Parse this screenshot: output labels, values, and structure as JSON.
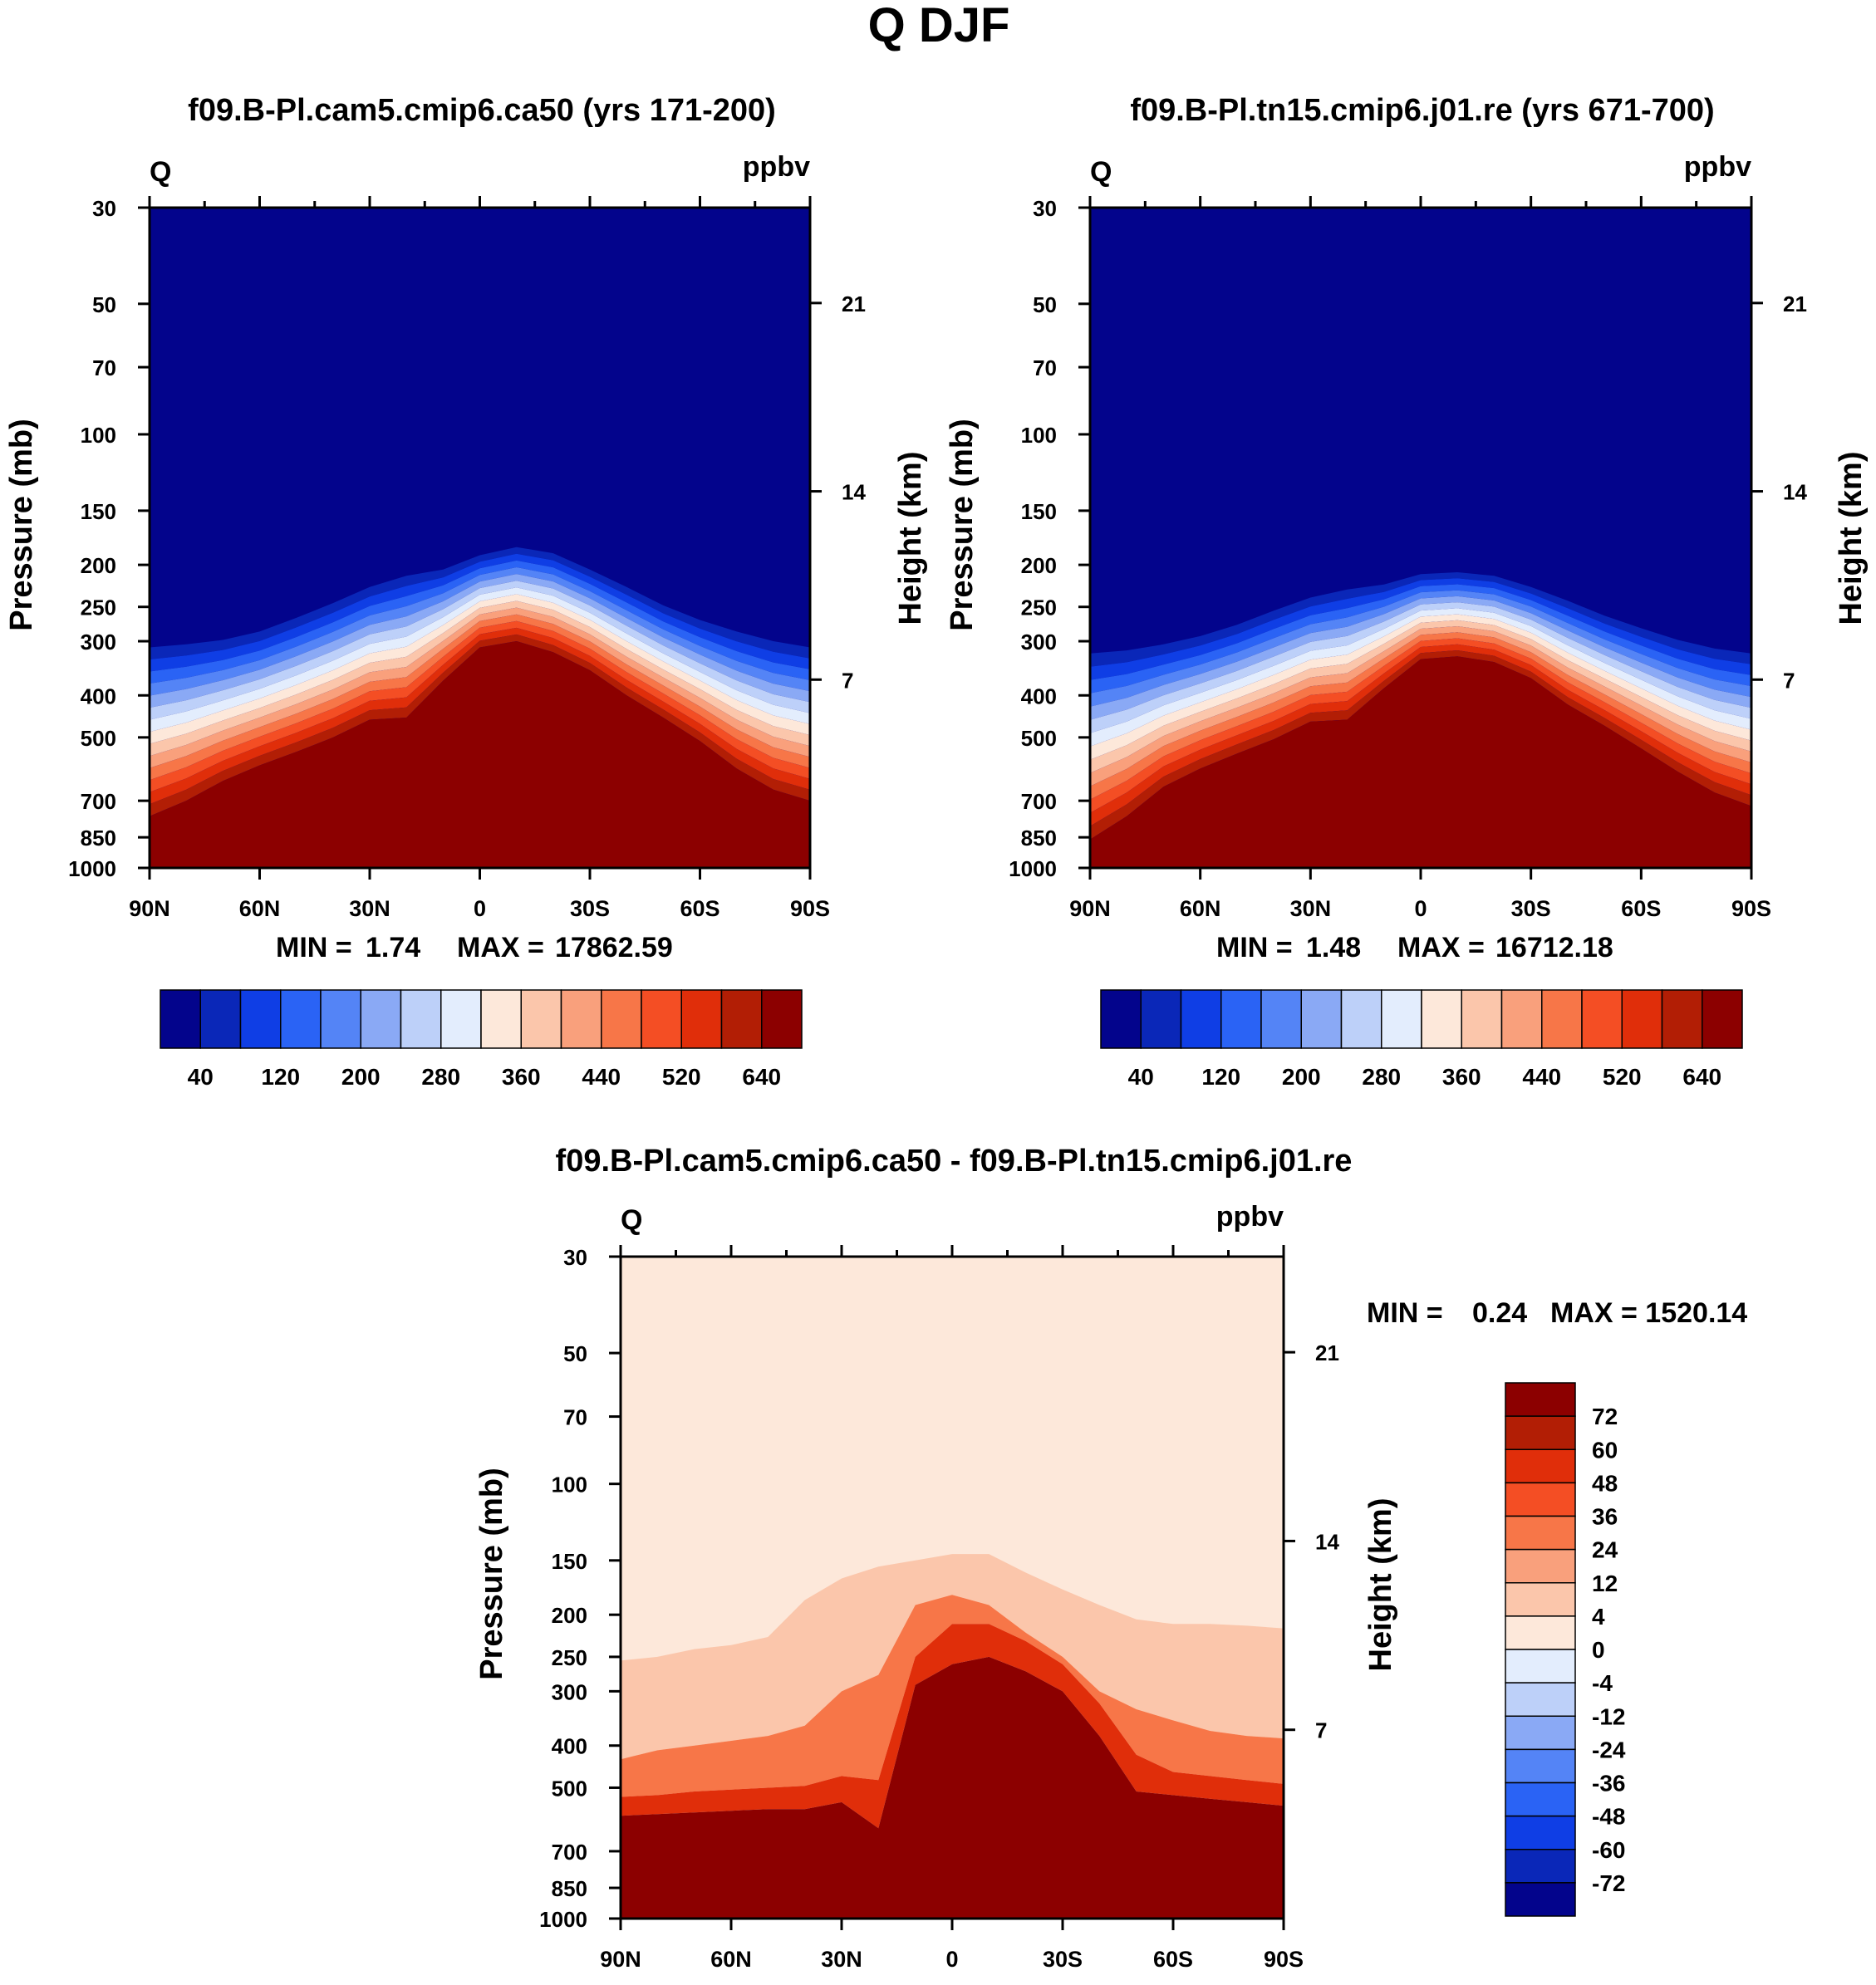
{
  "figure": {
    "title": "Q DJF"
  },
  "palettes": {
    "absolute": [
      "#03048c",
      "#0a27b8",
      "#0f3ee5",
      "#2a63f5",
      "#5484f6",
      "#8aa9f5",
      "#bdd0f9",
      "#e3edfd",
      "#fde8da",
      "#fbc6ab",
      "#f9a07c",
      "#f77648",
      "#f44e24",
      "#e02e0a",
      "#b21e05",
      "#8c0000"
    ],
    "difference": [
      "#03048c",
      "#0a27b8",
      "#0f3ee5",
      "#2a63f5",
      "#5484f6",
      "#8aa9f5",
      "#bdd0f9",
      "#e3edfd",
      "#fde8da",
      "#fbc6ab",
      "#f9a07c",
      "#f77648",
      "#f44e24",
      "#e02e0a",
      "#b21e05",
      "#8c0000"
    ]
  },
  "chart_data": [
    {
      "type": "contour",
      "title": "f09.B-Pl.cam5.cmip6.ca50 (yrs 171-200)",
      "variable": "Q",
      "units": "ppbv",
      "ylabel": "Pressure (mb)",
      "y2label": "Height (km)",
      "x_ticks": [
        "90N",
        "60N",
        "30N",
        "0",
        "30S",
        "60S",
        "90S"
      ],
      "x_values": [
        90,
        60,
        30,
        0,
        -30,
        -60,
        -90
      ],
      "p_ticks": [
        30,
        50,
        70,
        100,
        150,
        200,
        250,
        300,
        400,
        500,
        700,
        850,
        1000
      ],
      "height_ticks": [
        21,
        14,
        7
      ],
      "ylim": [
        1000,
        30
      ],
      "stats": {
        "min_label": "MIN =",
        "min": "1.74",
        "max_label": "MAX =",
        "max": "17862.59"
      },
      "contour_levels": [
        40,
        80,
        120,
        160,
        200,
        240,
        280,
        320,
        360,
        400,
        440,
        480,
        520,
        560,
        600,
        640
      ],
      "colorbar_labels": [
        "40",
        "120",
        "200",
        "280",
        "360",
        "440",
        "520",
        "640"
      ],
      "lat": [
        90,
        80,
        70,
        60,
        50,
        40,
        30,
        20,
        10,
        0,
        -10,
        -20,
        -30,
        -40,
        -50,
        -60,
        -70,
        -80,
        -90
      ],
      "top_boundary_p": [
        310,
        305,
        298,
        285,
        265,
        245,
        225,
        212,
        205,
        190,
        182,
        188,
        205,
        225,
        248,
        268,
        285,
        300,
        310
      ],
      "bottom_boundary_p": [
        760,
        700,
        630,
        580,
        540,
        500,
        455,
        450,
        370,
        310,
        300,
        318,
        350,
        400,
        450,
        510,
        590,
        660,
        700
      ]
    },
    {
      "type": "contour",
      "title": "f09.B-Pl.tn15.cmip6.j01.re (yrs 671-700)",
      "variable": "Q",
      "units": "ppbv",
      "ylabel": "Pressure (mb)",
      "y2label": "Height (km)",
      "x_ticks": [
        "90N",
        "60N",
        "30N",
        "0",
        "30S",
        "60S",
        "90S"
      ],
      "x_values": [
        90,
        60,
        30,
        0,
        -30,
        -60,
        -90
      ],
      "p_ticks": [
        30,
        50,
        70,
        100,
        150,
        200,
        250,
        300,
        400,
        500,
        700,
        850,
        1000
      ],
      "height_ticks": [
        21,
        14,
        7
      ],
      "ylim": [
        1000,
        30
      ],
      "stats": {
        "min_label": "MIN =",
        "min": "1.48",
        "max_label": "MAX =",
        "max": "16712.18"
      },
      "contour_levels": [
        40,
        80,
        120,
        160,
        200,
        240,
        280,
        320,
        360,
        400,
        440,
        480,
        520,
        560,
        600,
        640
      ],
      "colorbar_labels": [
        "40",
        "120",
        "200",
        "280",
        "360",
        "440",
        "520",
        "640"
      ],
      "lat": [
        90,
        80,
        70,
        60,
        50,
        40,
        30,
        20,
        10,
        0,
        -10,
        -20,
        -30,
        -40,
        -50,
        -60,
        -70,
        -80,
        -90
      ],
      "top_boundary_p": [
        320,
        315,
        305,
        292,
        275,
        255,
        238,
        228,
        222,
        210,
        208,
        212,
        225,
        242,
        262,
        280,
        298,
        312,
        320
      ],
      "bottom_boundary_p": [
        860,
        760,
        650,
        590,
        545,
        505,
        460,
        455,
        385,
        330,
        325,
        335,
        365,
        420,
        470,
        530,
        600,
        670,
        720
      ]
    },
    {
      "type": "contour",
      "title": "f09.B-Pl.cam5.cmip6.ca50 - f09.B-Pl.tn15.cmip6.j01.re",
      "variable": "Q",
      "units": "ppbv",
      "ylabel": "Pressure (mb)",
      "y2label": "Height (km)",
      "x_ticks": [
        "90N",
        "60N",
        "30N",
        "0",
        "30S",
        "60S",
        "90S"
      ],
      "x_values": [
        90,
        60,
        30,
        0,
        -30,
        -60,
        -90
      ],
      "p_ticks": [
        30,
        50,
        70,
        100,
        150,
        200,
        250,
        300,
        400,
        500,
        700,
        850,
        1000
      ],
      "height_ticks": [
        21,
        14,
        7
      ],
      "ylim": [
        1000,
        30
      ],
      "stats": {
        "min_label": "MIN =",
        "min": "0.24",
        "max_label": "MAX = 1520.14",
        "max": ""
      },
      "contour_levels": [
        -72,
        -60,
        -48,
        -36,
        -24,
        -12,
        -4,
        0,
        4,
        12,
        24,
        36,
        48,
        60,
        72
      ],
      "colorbar_labels": [
        "72",
        "60",
        "48",
        "36",
        "24",
        "12",
        "4",
        "0",
        "-4",
        "-12",
        "-24",
        "-36",
        "-48",
        "-60",
        "-72"
      ],
      "lat": [
        90,
        80,
        70,
        60,
        50,
        40,
        30,
        20,
        10,
        0,
        -10,
        -20,
        -30,
        -40,
        -50,
        -60,
        -70,
        -80,
        -90
      ],
      "layer_boundaries_p": [
        [
          255,
          250,
          240,
          235,
          225,
          185,
          165,
          155,
          150,
          145,
          145,
          160,
          175,
          190,
          205,
          210,
          210,
          212,
          215
        ],
        [
          430,
          410,
          400,
          390,
          380,
          360,
          300,
          275,
          190,
          180,
          190,
          220,
          250,
          300,
          330,
          350,
          370,
          380,
          385
        ],
        [
          525,
          520,
          510,
          505,
          500,
          495,
          470,
          480,
          250,
          210,
          210,
          230,
          260,
          320,
          420,
          460,
          470,
          480,
          490
        ],
        [
          580,
          575,
          570,
          565,
          560,
          560,
          540,
          620,
          290,
          260,
          250,
          270,
          300,
          380,
          510,
          520,
          530,
          540,
          550
        ]
      ]
    }
  ]
}
